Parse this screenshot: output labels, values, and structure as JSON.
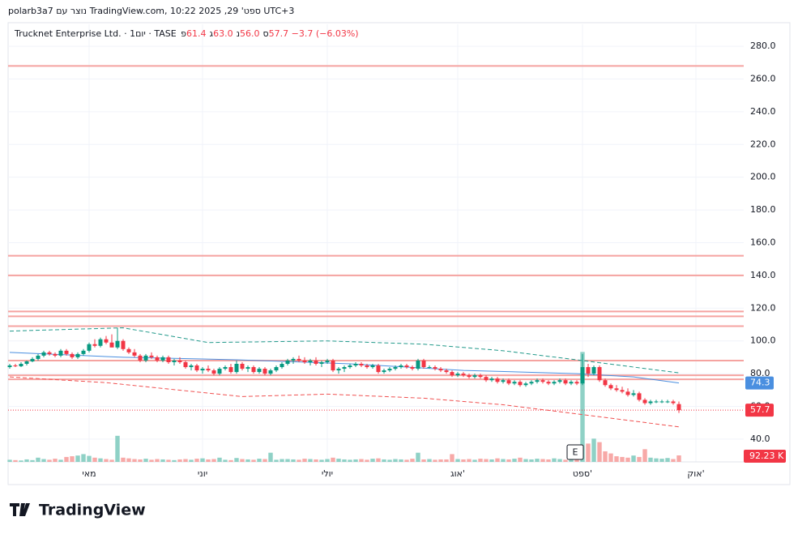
{
  "header": {
    "credit": "polarb3a7 נוצר עם TradingView.com, 10:22 2025 ,29 'ספט UTC+3"
  },
  "logo": "TradingView",
  "chart_data": {
    "type": "candlestick",
    "title": "Trucknet Enterprise Ltd.",
    "interval": "1יום",
    "exchange": "TASE",
    "ohlc_header": [
      {
        "label": "פ",
        "value": "61.4"
      },
      {
        "label": "ג",
        "value": "63.0"
      },
      {
        "label": "נ",
        "value": "56.0"
      },
      {
        "label": "ס",
        "value": "57.7"
      }
    ],
    "change": "−3.7 (−6.03%)",
    "categories": [
      null,
      null,
      null,
      null,
      null,
      null,
      null,
      null,
      null,
      null,
      null,
      null,
      null,
      null,
      "מאי",
      null,
      null,
      null,
      null,
      null,
      null,
      null,
      null,
      null,
      null,
      null,
      null,
      null,
      null,
      null,
      null,
      null,
      null,
      null,
      "יוני",
      null,
      null,
      null,
      null,
      null,
      null,
      null,
      null,
      null,
      null,
      null,
      null,
      null,
      null,
      null,
      null,
      null,
      null,
      null,
      null,
      null,
      "יולי",
      null,
      null,
      null,
      null,
      null,
      null,
      null,
      null,
      null,
      null,
      null,
      null,
      null,
      null,
      null,
      null,
      null,
      null,
      null,
      null,
      null,
      null,
      "אוג'",
      null,
      null,
      null,
      null,
      null,
      null,
      null,
      null,
      null,
      null,
      null,
      null,
      null,
      null,
      null,
      null,
      null,
      null,
      null,
      null,
      null,
      "ספט'",
      null,
      null,
      null,
      null,
      null,
      null,
      null,
      null,
      null,
      null,
      null,
      null,
      null,
      null,
      null,
      null,
      null,
      null,
      null,
      "אוק'"
    ],
    "ohlc": [
      [
        84,
        86,
        83,
        85
      ],
      [
        85,
        86,
        84,
        84.5
      ],
      [
        84.5,
        87,
        84,
        86
      ],
      [
        86,
        88,
        85,
        87.5
      ],
      [
        87.5,
        90,
        87,
        89
      ],
      [
        89,
        92,
        88,
        91
      ],
      [
        91,
        94,
        90,
        93
      ],
      [
        93,
        94,
        91,
        92
      ],
      [
        92,
        93,
        90,
        91
      ],
      [
        91,
        95,
        90,
        94
      ],
      [
        94,
        95,
        91,
        92
      ],
      [
        92,
        93,
        89,
        90
      ],
      [
        90,
        93,
        89,
        92
      ],
      [
        92,
        95,
        91,
        94
      ],
      [
        94,
        99,
        93,
        98
      ],
      [
        98,
        101,
        96,
        97
      ],
      [
        97,
        102,
        96,
        101
      ],
      [
        101,
        103,
        98,
        99
      ],
      [
        99,
        104,
        97,
        96
      ],
      [
        96,
        108,
        95,
        100
      ],
      [
        100,
        101,
        94,
        95
      ],
      [
        95,
        96,
        92,
        93
      ],
      [
        93,
        95,
        90,
        91
      ],
      [
        91,
        92,
        87,
        88
      ],
      [
        88,
        92,
        87,
        91
      ],
      [
        91,
        93,
        89,
        90
      ],
      [
        90,
        91,
        87,
        88
      ],
      [
        88,
        91,
        87,
        90
      ],
      [
        90,
        91,
        86,
        87
      ],
      [
        87,
        89,
        85,
        88
      ],
      [
        88,
        90,
        86,
        87
      ],
      [
        87,
        88,
        83,
        84
      ],
      [
        84,
        86,
        82,
        85
      ],
      [
        85,
        86,
        81,
        82
      ],
      [
        82,
        84,
        80,
        83
      ],
      [
        83,
        85,
        81,
        82
      ],
      [
        82,
        83,
        79,
        80
      ],
      [
        80,
        84,
        79,
        83
      ],
      [
        83,
        85,
        82,
        84
      ],
      [
        84,
        86,
        80,
        81
      ],
      [
        81,
        88,
        80,
        86
      ],
      [
        86,
        87,
        82,
        83
      ],
      [
        83,
        85,
        81,
        84
      ],
      [
        84,
        85,
        80,
        81
      ],
      [
        81,
        84,
        80,
        83
      ],
      [
        83,
        84,
        79,
        80
      ],
      [
        80,
        83,
        79,
        82
      ],
      [
        82,
        85,
        81,
        84
      ],
      [
        84,
        87,
        83,
        86
      ],
      [
        86,
        89,
        85,
        88
      ],
      [
        88,
        90,
        86,
        89
      ],
      [
        89,
        91,
        87,
        88
      ],
      [
        88,
        90,
        86,
        87
      ],
      [
        87,
        89,
        85,
        88
      ],
      [
        88,
        90,
        85,
        86
      ],
      [
        86,
        88,
        84,
        87
      ],
      [
        87,
        89,
        86,
        88
      ],
      [
        88,
        89,
        81,
        82
      ],
      [
        82,
        84,
        80,
        83
      ],
      [
        83,
        85,
        81,
        84
      ],
      [
        84,
        86,
        83,
        85
      ],
      [
        85,
        87,
        84,
        86
      ],
      [
        86,
        87,
        84,
        85
      ],
      [
        85,
        86,
        83,
        84
      ],
      [
        84,
        86,
        83,
        85
      ],
      [
        85,
        86,
        80,
        81
      ],
      [
        81,
        83,
        80,
        82
      ],
      [
        82,
        84,
        81,
        83
      ],
      [
        83,
        85,
        82,
        84
      ],
      [
        84,
        86,
        83,
        85
      ],
      [
        85,
        86,
        83,
        84
      ],
      [
        84,
        85,
        82,
        83
      ],
      [
        83,
        89,
        82,
        88
      ],
      [
        88,
        89,
        83,
        84
      ],
      [
        84,
        85,
        83,
        84
      ],
      [
        84,
        85,
        82,
        83
      ],
      [
        83,
        84,
        81,
        82
      ],
      [
        82,
        83,
        80,
        81
      ],
      [
        81,
        82,
        78,
        79
      ],
      [
        79,
        81,
        78,
        80
      ],
      [
        80,
        81,
        78,
        79
      ],
      [
        79,
        80,
        77,
        78
      ],
      [
        78,
        80,
        77,
        79
      ],
      [
        79,
        80,
        77,
        78
      ],
      [
        78,
        79,
        75,
        76
      ],
      [
        76,
        78,
        75,
        77
      ],
      [
        77,
        78,
        74,
        75
      ],
      [
        75,
        77,
        74,
        76
      ],
      [
        76,
        77,
        73,
        74
      ],
      [
        74,
        76,
        73,
        75
      ],
      [
        75,
        76,
        72,
        73
      ],
      [
        73,
        75,
        72,
        74
      ],
      [
        74,
        76,
        73,
        75
      ],
      [
        75,
        77,
        74,
        76
      ],
      [
        76,
        77,
        74,
        75
      ],
      [
        75,
        76,
        73,
        74
      ],
      [
        74,
        76,
        73,
        75
      ],
      [
        75,
        77,
        74,
        76
      ],
      [
        76,
        77,
        73,
        74
      ],
      [
        74,
        76,
        73,
        75
      ],
      [
        75,
        76,
        73,
        74
      ],
      [
        74,
        92,
        73,
        84
      ],
      [
        84,
        86,
        78,
        80
      ],
      [
        80,
        85,
        79,
        84
      ],
      [
        84,
        85,
        75,
        76
      ],
      [
        76,
        77,
        72,
        73
      ],
      [
        73,
        74,
        70,
        71
      ],
      [
        71,
        73,
        69,
        70
      ],
      [
        70,
        72,
        68,
        69
      ],
      [
        69,
        71,
        66,
        67
      ],
      [
        67,
        70,
        66,
        68
      ],
      [
        68,
        69,
        63,
        64
      ],
      [
        64,
        65,
        61,
        62
      ],
      [
        62,
        64,
        61,
        63
      ],
      [
        63,
        64,
        62,
        63
      ],
      [
        63,
        64,
        62,
        63
      ],
      [
        63,
        64,
        62,
        63
      ],
      [
        63,
        64,
        61,
        62
      ],
      [
        61.4,
        63,
        56,
        57.7
      ],
      null,
      null,
      null
    ],
    "volume": [
      30,
      25,
      20,
      35,
      25,
      60,
      40,
      30,
      45,
      30,
      70,
      80,
      90,
      110,
      85,
      60,
      50,
      40,
      30,
      370,
      60,
      50,
      40,
      35,
      45,
      30,
      40,
      35,
      30,
      25,
      35,
      40,
      30,
      45,
      50,
      35,
      40,
      60,
      30,
      25,
      55,
      40,
      35,
      30,
      45,
      40,
      130,
      30,
      40,
      40,
      35,
      30,
      45,
      40,
      35,
      30,
      40,
      60,
      45,
      35,
      30,
      35,
      40,
      30,
      45,
      50,
      35,
      30,
      40,
      35,
      30,
      45,
      130,
      35,
      40,
      30,
      35,
      35,
      110,
      40,
      35,
      40,
      30,
      45,
      40,
      35,
      50,
      40,
      35,
      45,
      60,
      40,
      35,
      45,
      40,
      35,
      50,
      40,
      30,
      55,
      130,
      1560,
      260,
      330,
      280,
      150,
      120,
      80,
      70,
      60,
      90,
      70,
      180,
      60,
      50,
      45,
      55,
      40,
      92.23,
      null,
      null,
      null
    ],
    "volume_label": "92.23 K",
    "vlim": [
      0,
      1840
    ],
    "up_color": "#089981",
    "down_color": "#f23645",
    "volume_up_color": "#8fd1c6",
    "volume_down_color": "#f7a9a7",
    "ylim": [
      26.1,
      293.4
    ],
    "yticks": [
      {
        "value": 40,
        "label": "40.0"
      },
      {
        "value": 60,
        "label": "60.0"
      },
      {
        "value": 80,
        "label": "80.0"
      },
      {
        "value": 100,
        "label": "100.0"
      },
      {
        "value": 120,
        "label": "120.0"
      },
      {
        "value": 140,
        "label": "140.0"
      },
      {
        "value": 160,
        "label": "160.0"
      },
      {
        "value": 180,
        "label": "180.0"
      },
      {
        "value": 200,
        "label": "200.0"
      },
      {
        "value": 220,
        "label": "220.0"
      },
      {
        "value": 240,
        "label": "240.0"
      },
      {
        "value": 260,
        "label": "260.0"
      },
      {
        "value": 280,
        "label": "280.0"
      }
    ],
    "grid": true,
    "hlines": {
      "color": "#f5a3a0",
      "values": [
        268,
        152,
        140,
        118,
        115,
        109,
        88,
        79,
        76.5
      ]
    },
    "lines": [
      {
        "color": "#4a8fe0",
        "dash": false,
        "x": [
          0,
          20,
          40,
          60,
          80,
          100,
          110,
          118
        ],
        "values": [
          93,
          90,
          88.5,
          86,
          82,
          80,
          78,
          74.3
        ]
      },
      {
        "color": "#22998a",
        "dash": true,
        "x": [
          0,
          20,
          35,
          56,
          73,
          87,
          101,
          118
        ],
        "values": [
          106,
          108,
          99,
          100,
          98,
          94,
          88,
          80.5
        ]
      },
      {
        "color": "#f05050",
        "dash": true,
        "x": [
          0,
          17,
          41,
          56,
          73,
          87,
          101,
          118
        ],
        "values": [
          78,
          74.5,
          66,
          67.5,
          65,
          61,
          55,
          47.5
        ]
      }
    ],
    "earnings": "E"
  }
}
